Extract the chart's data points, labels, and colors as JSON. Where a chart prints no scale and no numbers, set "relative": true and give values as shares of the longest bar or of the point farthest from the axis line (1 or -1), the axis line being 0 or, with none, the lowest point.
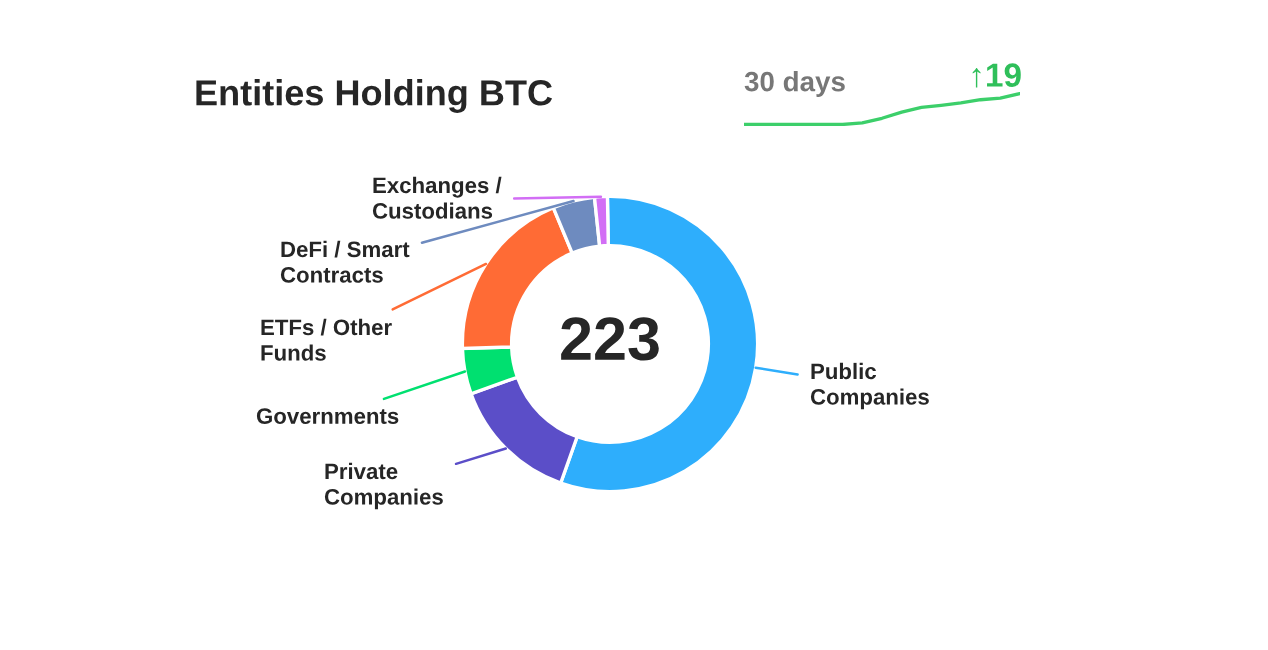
{
  "chart_data": [
    {
      "type": "donut",
      "title": "Entities Holding BTC",
      "categories": [
        "Public Companies",
        "Private Companies",
        "Governments",
        "ETFs / Other Funds",
        "DeFi / Smart Contracts",
        "Exchanges / Custodians"
      ],
      "values": [
        55.7,
        14.1,
        5,
        19.2,
        4.6,
        1.4
      ],
      "colors": [
        "#2eaefc",
        "#5b4ec8",
        "#00e070",
        "#ff6b35",
        "#6e8bbf",
        "#d26ef5"
      ],
      "annotations": [
        "223"
      ]
    },
    {
      "type": "line",
      "relative": true,
      "categories": [
        null,
        null,
        null,
        null,
        null,
        null,
        null,
        null,
        null,
        null,
        null,
        null,
        null,
        null,
        null
      ],
      "series": [
        {
          "color": "#3ccf6a",
          "values": [
            0,
            0,
            0,
            0,
            0,
            0,
            0.05,
            0.2,
            0.4,
            0.55,
            0.62,
            0.7,
            0.8,
            0.85,
            1
          ]
        }
      ],
      "annotations": [
        "30 days",
        "↑19"
      ]
    }
  ]
}
